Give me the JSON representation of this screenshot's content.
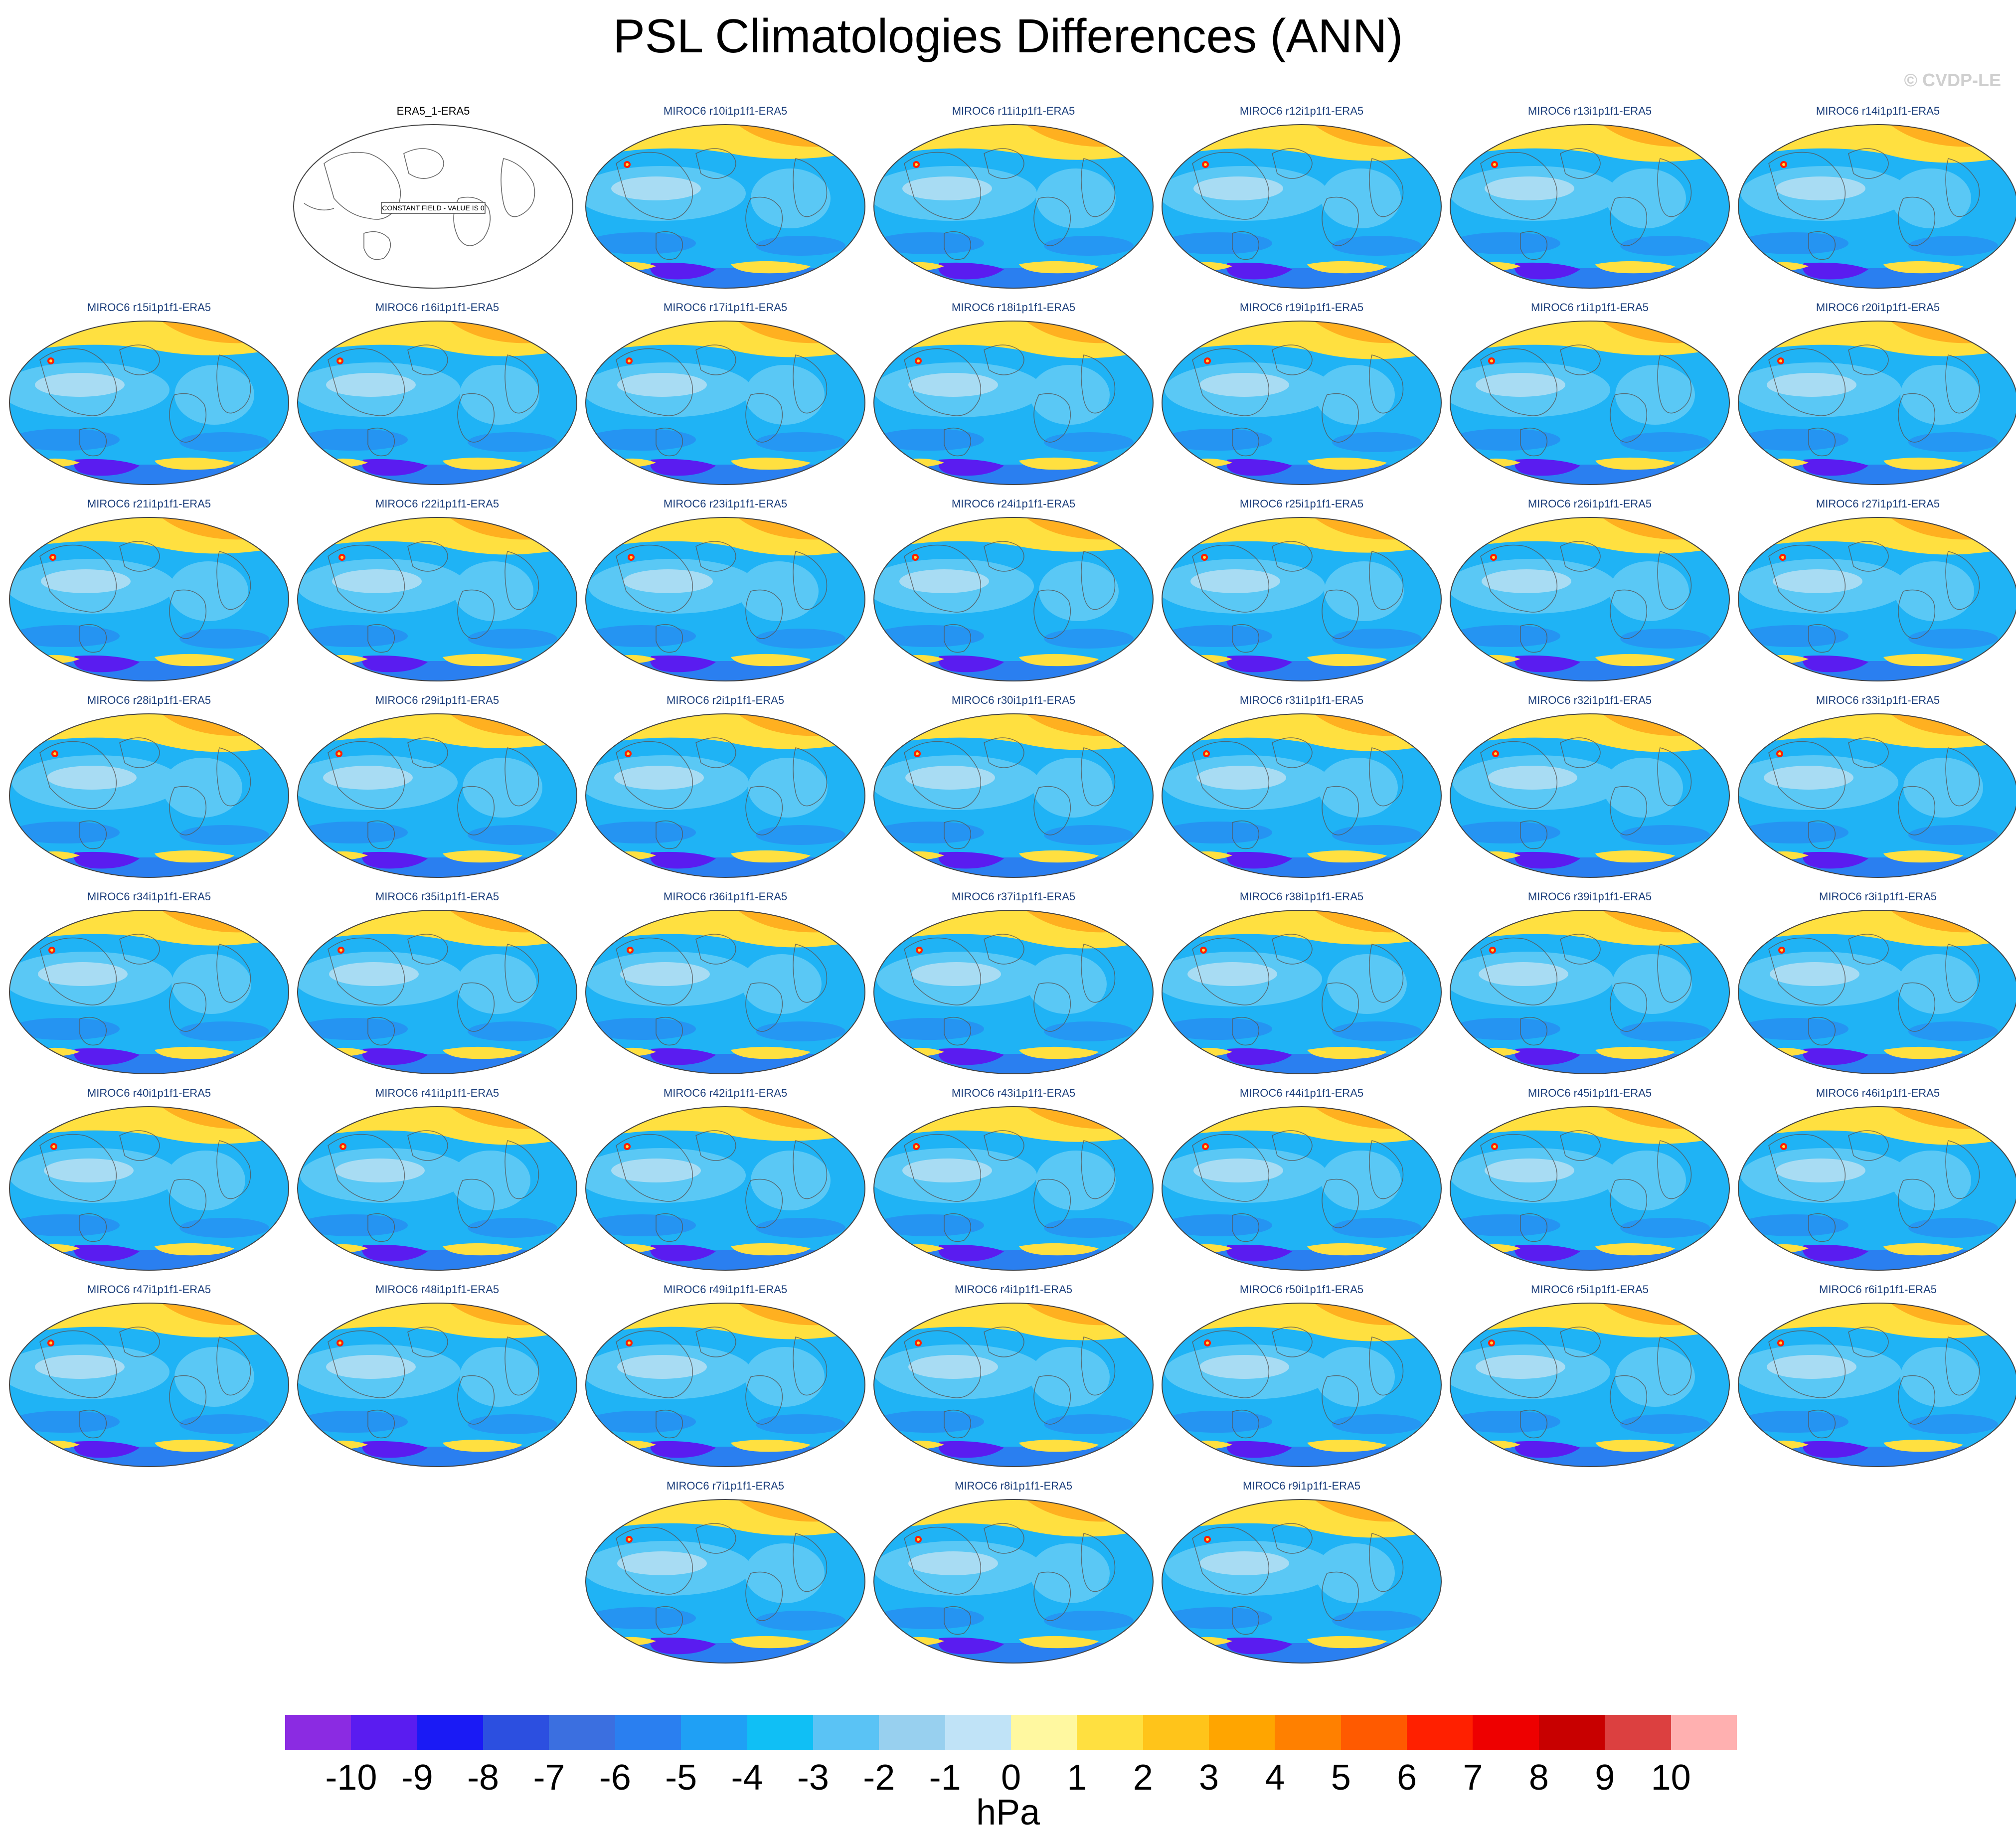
{
  "title": "PSL Climatologies Differences (ANN)",
  "credit": "© CVDP-LE",
  "observation_panel": {
    "title": "ERA5_1-ERA5",
    "message": "CONSTANT FIELD - VALUE IS 0"
  },
  "panels": [
    "MIROC6 r10i1p1f1-ERA5",
    "MIROC6 r11i1p1f1-ERA5",
    "MIROC6 r12i1p1f1-ERA5",
    "MIROC6 r13i1p1f1-ERA5",
    "MIROC6 r14i1p1f1-ERA5",
    "MIROC6 r15i1p1f1-ERA5",
    "MIROC6 r16i1p1f1-ERA5",
    "MIROC6 r17i1p1f1-ERA5",
    "MIROC6 r18i1p1f1-ERA5",
    "MIROC6 r19i1p1f1-ERA5",
    "MIROC6 r1i1p1f1-ERA5",
    "MIROC6 r20i1p1f1-ERA5",
    "MIROC6 r21i1p1f1-ERA5",
    "MIROC6 r22i1p1f1-ERA5",
    "MIROC6 r23i1p1f1-ERA5",
    "MIROC6 r24i1p1f1-ERA5",
    "MIROC6 r25i1p1f1-ERA5",
    "MIROC6 r26i1p1f1-ERA5",
    "MIROC6 r27i1p1f1-ERA5",
    "MIROC6 r28i1p1f1-ERA5",
    "MIROC6 r29i1p1f1-ERA5",
    "MIROC6 r2i1p1f1-ERA5",
    "MIROC6 r30i1p1f1-ERA5",
    "MIROC6 r31i1p1f1-ERA5",
    "MIROC6 r32i1p1f1-ERA5",
    "MIROC6 r33i1p1f1-ERA5",
    "MIROC6 r34i1p1f1-ERA5",
    "MIROC6 r35i1p1f1-ERA5",
    "MIROC6 r36i1p1f1-ERA5",
    "MIROC6 r37i1p1f1-ERA5",
    "MIROC6 r38i1p1f1-ERA5",
    "MIROC6 r39i1p1f1-ERA5",
    "MIROC6 r3i1p1f1-ERA5",
    "MIROC6 r40i1p1f1-ERA5",
    "MIROC6 r41i1p1f1-ERA5",
    "MIROC6 r42i1p1f1-ERA5",
    "MIROC6 r43i1p1f1-ERA5",
    "MIROC6 r44i1p1f1-ERA5",
    "MIROC6 r45i1p1f1-ERA5",
    "MIROC6 r46i1p1f1-ERA5",
    "MIROC6 r47i1p1f1-ERA5",
    "MIROC6 r48i1p1f1-ERA5",
    "MIROC6 r49i1p1f1-ERA5",
    "MIROC6 r4i1p1f1-ERA5",
    "MIROC6 r50i1p1f1-ERA5",
    "MIROC6 r5i1p1f1-ERA5",
    "MIROC6 r6i1p1f1-ERA5",
    "MIROC6 r7i1p1f1-ERA5",
    "MIROC6 r8i1p1f1-ERA5",
    "MIROC6 r9i1p1f1-ERA5"
  ],
  "colorbar": {
    "units": "hPa",
    "tick_labels": [
      "-10",
      "-9",
      "-8",
      "-7",
      "-6",
      "-5",
      "-4",
      "-3",
      "-2",
      "-1",
      "0",
      "1",
      "2",
      "3",
      "4",
      "5",
      "6",
      "7",
      "8",
      "9",
      "10"
    ],
    "colors": [
      "#8b2be2",
      "#5a1cf0",
      "#1a1af5",
      "#2c4fe0",
      "#3b6fe0",
      "#2a7ff0",
      "#1fa0f5",
      "#10bff5",
      "#5ac3f5",
      "#98d0ef",
      "#c0e3f7",
      "#fff8a0",
      "#ffe040",
      "#ffc41a",
      "#ffa500",
      "#ff8000",
      "#ff5a00",
      "#ff2000",
      "#ee0000",
      "#c80000",
      "#dc4040",
      "#ffb0b0"
    ]
  },
  "map_colors": {
    "ocean_base": "#1fb3f5",
    "light_blue": "#5ac8f5",
    "pale_blue": "#a8dcf3",
    "deep_blue": "#2a7ff0",
    "yellow": "#ffe040",
    "orange": "#ffb020",
    "purple": "#5a1cf0",
    "red": "#ff2000",
    "coast": "#555555"
  }
}
